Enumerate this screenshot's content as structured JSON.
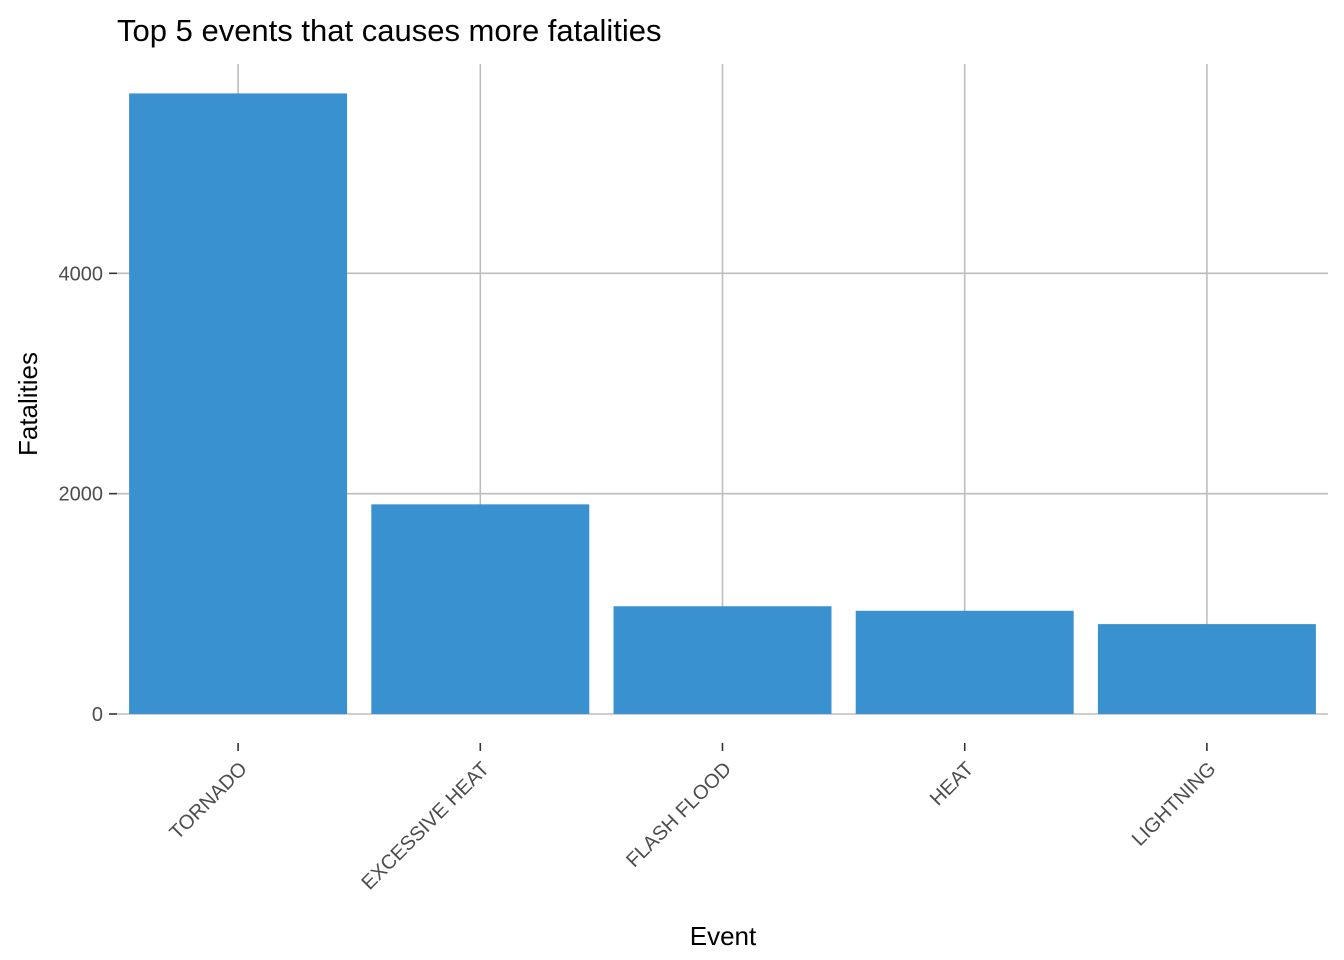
{
  "chart_data": {
    "type": "bar",
    "title": "Top 5 events that causes more fatalities",
    "xlabel": "Event",
    "ylabel": "Fatalities",
    "categories": [
      "TORNADO",
      "EXCESSIVE HEAT",
      "FLASH FLOOD",
      "HEAT",
      "LIGHTNING"
    ],
    "values": [
      5633,
      1903,
      978,
      937,
      816
    ],
    "ylim": [
      0,
      5900
    ],
    "yticks": [
      0,
      2000,
      4000
    ],
    "ytick_labels": [
      "0",
      "2000",
      "4000"
    ],
    "bar_color": "#3a91cf",
    "grid": true,
    "legend": "none"
  }
}
